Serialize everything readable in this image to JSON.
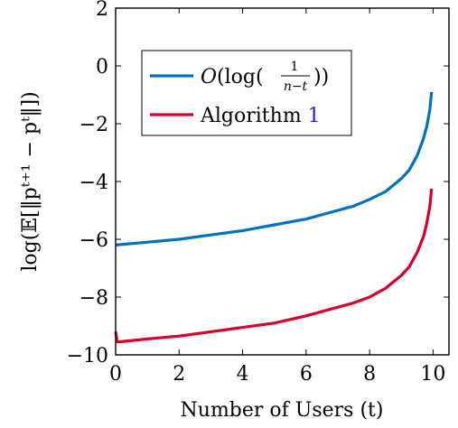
{
  "chart_data": {
    "type": "line",
    "xlabel": "Number of Users (t)",
    "ylabel": "log(𝔼[‖pᵗ⁺¹ − pᵗ‖])",
    "xlim": [
      0,
      10.5
    ],
    "ylim": [
      -10,
      2
    ],
    "x_ticks": [
      0,
      2,
      4,
      6,
      8,
      10
    ],
    "y_ticks": [
      -10,
      -8,
      -6,
      -4,
      -2,
      0,
      2
    ],
    "x_tick_labels": [
      "0",
      "2",
      "4",
      "6",
      "8",
      "10"
    ],
    "y_tick_labels": [
      "−10",
      "−8",
      "−6",
      "−4",
      "−2",
      "0",
      "2"
    ],
    "grid": false,
    "legend_position": "top-left",
    "series": [
      {
        "name": "O(log(1/(n−t)))",
        "color": "#0072bd",
        "x": [
          0,
          1,
          2,
          3,
          4,
          5,
          6,
          7,
          7.5,
          8,
          8.5,
          9,
          9.25,
          9.5,
          9.7,
          9.8,
          9.9,
          9.95
        ],
        "y": [
          -6.2,
          -6.1,
          -6.0,
          -5.85,
          -5.7,
          -5.5,
          -5.3,
          -5.0,
          -4.85,
          -4.62,
          -4.35,
          -3.9,
          -3.6,
          -3.1,
          -2.5,
          -2.1,
          -1.5,
          -0.9
        ]
      },
      {
        "name": "Algorithm 1",
        "color": "#d7002a",
        "x": [
          0,
          0.05,
          0.1,
          1,
          2,
          3,
          4,
          5,
          6,
          7,
          7.5,
          8,
          8.5,
          9,
          9.25,
          9.5,
          9.7,
          9.8,
          9.9,
          9.95
        ],
        "y": [
          -9.2,
          -9.55,
          -9.55,
          -9.45,
          -9.35,
          -9.2,
          -9.05,
          -8.9,
          -8.65,
          -8.35,
          -8.2,
          -8.0,
          -7.7,
          -7.25,
          -6.95,
          -6.45,
          -5.9,
          -5.45,
          -4.85,
          -4.25
        ]
      }
    ],
    "legend": {
      "entry1_prefix": "O(log(",
      "entry1_num": "1",
      "entry1_den": "n−t",
      "entry1_suffix": "))",
      "entry2_text": "Algorithm ",
      "entry2_ref": "1",
      "entry2_ref_color": "#1f1fd6"
    }
  }
}
